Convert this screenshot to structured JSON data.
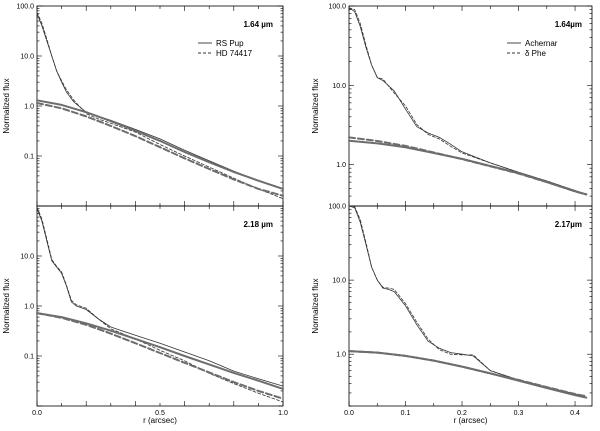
{
  "chart_data": [
    {
      "type": "line",
      "panel": "left-top",
      "label": "1.64 µm",
      "yscale": "log",
      "xlim": [
        0.0,
        1.0
      ],
      "ylim": [
        0.01,
        100.0
      ],
      "yticks": [
        "100.0",
        "10.0",
        "1.0",
        "0.1"
      ],
      "xticks": [],
      "ylabel": "Normalized flux",
      "xlabel": "",
      "legend": {
        "position": "top-right",
        "entries": [
          {
            "name": "RS Pup",
            "style": "solid"
          },
          {
            "name": "HD 74417",
            "style": "dashed"
          }
        ]
      },
      "series": [
        {
          "name": "RS Pup",
          "style": "solid",
          "width": "thin",
          "x": [
            0,
            0.02,
            0.04,
            0.06,
            0.08,
            0.1,
            0.12,
            0.15,
            0.2,
            0.25,
            0.3,
            0.4,
            0.5,
            0.6,
            0.7,
            0.8,
            0.9,
            1.0
          ],
          "y": [
            70,
            40,
            20,
            10,
            5,
            3,
            1.9,
            1.2,
            0.75,
            0.62,
            0.52,
            0.34,
            0.22,
            0.13,
            0.08,
            0.05,
            0.032,
            0.022
          ]
        },
        {
          "name": "HD 74417",
          "style": "dashed",
          "width": "thin",
          "x": [
            0,
            0.02,
            0.04,
            0.06,
            0.08,
            0.1,
            0.12,
            0.15,
            0.2,
            0.25,
            0.3,
            0.4,
            0.5,
            0.6,
            0.7,
            0.8,
            0.9,
            1.0
          ],
          "y": [
            75,
            45,
            22,
            10,
            5,
            3.2,
            2.1,
            1.3,
            0.7,
            0.55,
            0.45,
            0.3,
            0.17,
            0.1,
            0.06,
            0.036,
            0.022,
            0.014
          ]
        },
        {
          "name": "RS Pup",
          "style": "solid",
          "width": "thick",
          "x": [
            0,
            0.1,
            0.2,
            0.3,
            0.4,
            0.5,
            0.6,
            0.7,
            0.8,
            0.9,
            1.0
          ],
          "y": [
            1.3,
            1.05,
            0.75,
            0.5,
            0.32,
            0.2,
            0.12,
            0.075,
            0.048,
            0.032,
            0.022
          ]
        },
        {
          "name": "HD 74417",
          "style": "dashed",
          "width": "thick",
          "x": [
            0,
            0.1,
            0.2,
            0.3,
            0.4,
            0.5,
            0.6,
            0.7,
            0.8,
            0.9,
            1.0
          ],
          "y": [
            1.15,
            0.9,
            0.62,
            0.4,
            0.25,
            0.15,
            0.09,
            0.055,
            0.034,
            0.022,
            0.016
          ]
        }
      ]
    },
    {
      "type": "line",
      "panel": "left-bottom",
      "label": "2.18 µm",
      "yscale": "log",
      "xlim": [
        0.0,
        1.0
      ],
      "ylim": [
        0.01,
        100.0
      ],
      "yticks": [
        "10.0",
        "1.0",
        "0.1"
      ],
      "xticks": [
        "0.0",
        "0.5",
        "1.0"
      ],
      "ylabel": "Normalized flux",
      "xlabel": "r (arcsec)",
      "series": [
        {
          "name": "RS Pup",
          "style": "solid",
          "width": "thin",
          "x": [
            0,
            0.02,
            0.04,
            0.06,
            0.08,
            0.1,
            0.12,
            0.14,
            0.16,
            0.2,
            0.25,
            0.3,
            0.4,
            0.5,
            0.6,
            0.7,
            0.8,
            0.9,
            1.0
          ],
          "y": [
            90,
            50,
            20,
            8,
            6,
            4.5,
            2.5,
            1.2,
            1.0,
            0.85,
            0.55,
            0.38,
            0.26,
            0.18,
            0.12,
            0.08,
            0.05,
            0.035,
            0.025
          ]
        },
        {
          "name": "HD 74417",
          "style": "dashed",
          "width": "thin",
          "x": [
            0,
            0.02,
            0.04,
            0.06,
            0.08,
            0.1,
            0.12,
            0.14,
            0.16,
            0.2,
            0.25,
            0.3,
            0.4,
            0.5,
            0.6,
            0.7,
            0.8,
            0.9,
            1.0
          ],
          "y": [
            95,
            55,
            22,
            8.5,
            6.2,
            4.8,
            2.6,
            1.3,
            1.05,
            0.9,
            0.55,
            0.35,
            0.22,
            0.13,
            0.08,
            0.045,
            0.028,
            0.018,
            0.012
          ]
        },
        {
          "name": "RS Pup",
          "style": "solid",
          "width": "thick",
          "x": [
            0,
            0.1,
            0.2,
            0.3,
            0.4,
            0.5,
            0.6,
            0.7,
            0.8,
            0.9,
            1.0
          ],
          "y": [
            0.72,
            0.6,
            0.45,
            0.32,
            0.22,
            0.15,
            0.1,
            0.068,
            0.046,
            0.032,
            0.022
          ]
        },
        {
          "name": "HD 74417",
          "style": "dashed",
          "width": "thick",
          "x": [
            0,
            0.1,
            0.2,
            0.3,
            0.4,
            0.5,
            0.6,
            0.7,
            0.8,
            0.9,
            1.0
          ],
          "y": [
            0.72,
            0.58,
            0.42,
            0.28,
            0.18,
            0.115,
            0.073,
            0.047,
            0.03,
            0.02,
            0.014
          ]
        }
      ]
    },
    {
      "type": "line",
      "panel": "right-top",
      "label": "1.64µm",
      "yscale": "log",
      "xlim": [
        0.0,
        0.43
      ],
      "ylim": [
        0.3,
        100.0
      ],
      "yticks": [
        "100.0",
        "10.0",
        "1.0"
      ],
      "xticks": [],
      "ylabel": "Normalized flux",
      "xlabel": "",
      "legend": {
        "position": "top-right",
        "entries": [
          {
            "name": "Achernar",
            "style": "solid"
          },
          {
            "name": "δ Phe",
            "style": "dashed"
          }
        ]
      },
      "series": [
        {
          "name": "Achernar",
          "style": "solid",
          "width": "thin",
          "x": [
            0,
            0.01,
            0.02,
            0.03,
            0.04,
            0.05,
            0.06,
            0.08,
            0.1,
            0.12,
            0.14,
            0.16,
            0.18,
            0.2,
            0.25,
            0.3,
            0.35,
            0.4,
            0.42
          ],
          "y": [
            95,
            85,
            55,
            30,
            18,
            12.5,
            11.5,
            8.5,
            5.0,
            3.0,
            2.5,
            2.2,
            1.8,
            1.45,
            1.05,
            0.8,
            0.62,
            0.47,
            0.42
          ]
        },
        {
          "name": "δ Phe",
          "style": "dashed",
          "width": "thin",
          "x": [
            0,
            0.01,
            0.02,
            0.03,
            0.04,
            0.05,
            0.06,
            0.08,
            0.1,
            0.12,
            0.14,
            0.16,
            0.18,
            0.2,
            0.25,
            0.3,
            0.35,
            0.4,
            0.42
          ],
          "y": [
            95,
            90,
            60,
            32,
            18,
            12.5,
            12.0,
            8.0,
            5.5,
            3.2,
            2.4,
            2.1,
            1.7,
            1.4,
            1.05,
            0.8,
            0.62,
            0.47,
            0.42
          ]
        },
        {
          "name": "Achernar",
          "style": "solid",
          "width": "thick",
          "x": [
            0,
            0.05,
            0.1,
            0.15,
            0.2,
            0.25,
            0.3,
            0.35,
            0.4,
            0.42
          ],
          "y": [
            2.0,
            1.85,
            1.65,
            1.4,
            1.18,
            0.96,
            0.78,
            0.6,
            0.46,
            0.42
          ]
        },
        {
          "name": "δ Phe",
          "style": "dashed",
          "width": "thick",
          "x": [
            0,
            0.05,
            0.1,
            0.15,
            0.2,
            0.25,
            0.3,
            0.35,
            0.4,
            0.42
          ],
          "y": [
            2.2,
            1.98,
            1.72,
            1.42,
            1.17,
            0.95,
            0.77,
            0.6,
            0.46,
            0.42
          ]
        }
      ]
    },
    {
      "type": "line",
      "panel": "right-bottom",
      "label": "2.17µm",
      "yscale": "log",
      "xlim": [
        0.0,
        0.43
      ],
      "ylim": [
        0.2,
        100.0
      ],
      "yticks": [
        "100.0",
        "10.0",
        "1.0"
      ],
      "xticks": [
        "0.0",
        "0.1",
        "0.2",
        "0.3",
        "0.4"
      ],
      "ylabel": "Normalized flux",
      "xlabel": "r (arcsec)",
      "series": [
        {
          "name": "Achernar",
          "style": "solid",
          "width": "thin",
          "x": [
            0,
            0.01,
            0.02,
            0.03,
            0.04,
            0.05,
            0.06,
            0.07,
            0.08,
            0.1,
            0.12,
            0.14,
            0.16,
            0.18,
            0.2,
            0.22,
            0.25,
            0.3,
            0.35,
            0.4,
            0.42
          ],
          "y": [
            100,
            95,
            60,
            30,
            15,
            10,
            7.8,
            7.5,
            7.0,
            4.5,
            2.5,
            1.5,
            1.2,
            1.05,
            1.0,
            0.95,
            0.6,
            0.45,
            0.36,
            0.29,
            0.26
          ]
        },
        {
          "name": "δ Phe",
          "style": "dashed",
          "width": "thin",
          "x": [
            0,
            0.01,
            0.02,
            0.03,
            0.04,
            0.05,
            0.06,
            0.07,
            0.08,
            0.1,
            0.12,
            0.14,
            0.16,
            0.18,
            0.2,
            0.22,
            0.25,
            0.3,
            0.35,
            0.4,
            0.42
          ],
          "y": [
            100,
            98,
            65,
            32,
            15,
            10,
            8.0,
            7.8,
            7.5,
            4.8,
            2.7,
            1.6,
            1.15,
            1.0,
            0.98,
            0.98,
            0.6,
            0.45,
            0.36,
            0.29,
            0.26
          ]
        },
        {
          "name": "Achernar",
          "style": "solid",
          "width": "thick",
          "x": [
            0,
            0.05,
            0.1,
            0.15,
            0.2,
            0.25,
            0.3,
            0.35,
            0.4,
            0.42
          ],
          "y": [
            1.1,
            1.05,
            0.95,
            0.82,
            0.68,
            0.55,
            0.44,
            0.35,
            0.28,
            0.26
          ]
        },
        {
          "name": "δ Phe",
          "style": "dashed",
          "width": "thick",
          "x": [
            0,
            0.05,
            0.1,
            0.15,
            0.2,
            0.25,
            0.3,
            0.35,
            0.4,
            0.42
          ],
          "y": [
            1.1,
            1.05,
            0.95,
            0.82,
            0.68,
            0.55,
            0.45,
            0.36,
            0.29,
            0.27
          ]
        }
      ]
    }
  ]
}
